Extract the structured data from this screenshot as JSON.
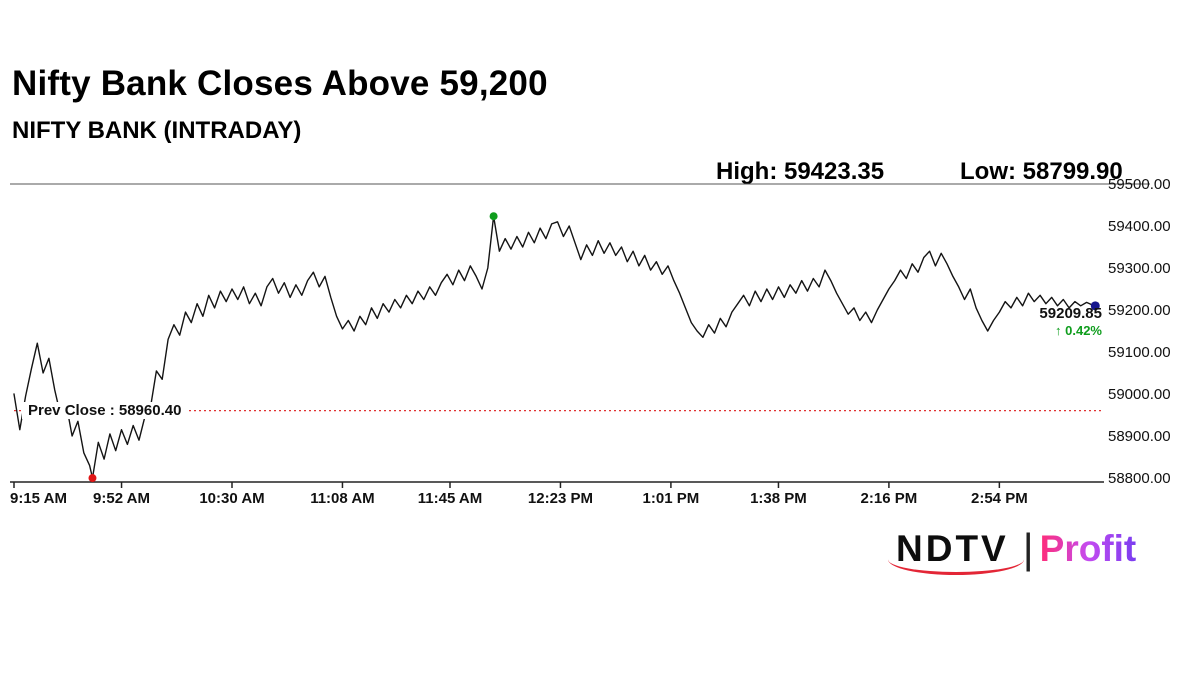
{
  "header": {
    "title": "Nifty Bank Closes Above 59,200",
    "subtitle": "NIFTY BANK (INTRADAY)",
    "high_label": "High: 59423.35",
    "low_label": "Low: 58799.90"
  },
  "chart_data": {
    "type": "line",
    "title": "NIFTY BANK (INTRADAY)",
    "x_unit": "minutes since 9:15 AM",
    "xlim": [
      0,
      375
    ],
    "ylim": [
      58800,
      59500
    ],
    "x_tick_labels": [
      "9:15 AM",
      "9:52 AM",
      "10:30 AM",
      "11:08 AM",
      "11:45 AM",
      "12:23 PM",
      "1:01 PM",
      "1:38 PM",
      "2:16 PM",
      "2:54 PM"
    ],
    "x_tick_minutes": [
      0,
      37,
      75,
      113,
      150,
      188,
      226,
      263,
      301,
      339
    ],
    "y_tick_values": [
      58800,
      58900,
      59000,
      59100,
      59200,
      59300,
      59400,
      59500
    ],
    "y_tick_labels": [
      "58800.00",
      "58900.00",
      "59000.00",
      "59100.00",
      "59200.00",
      "59300.00",
      "59400.00",
      "59500.00"
    ],
    "high": 59423.35,
    "low": 58799.9,
    "prev_close": 58960.4,
    "prev_close_label": "Prev Close : 58960.40",
    "last_price": "59209.85",
    "change_pct": "↑ 0.42%",
    "colors": {
      "line": "#141414",
      "prev_close_line": "#e03131",
      "high_dot": "#0f9d1d",
      "low_dot": "#e01616",
      "last_dot": "#14148c",
      "change_up": "#0f9d1d",
      "axis": "#222222"
    },
    "series": [
      {
        "name": "NIFTY BANK",
        "points": [
          [
            0,
            59000
          ],
          [
            2,
            58915
          ],
          [
            4,
            58995
          ],
          [
            6,
            59060
          ],
          [
            8,
            59121
          ],
          [
            10,
            59050
          ],
          [
            12,
            59085
          ],
          [
            14,
            59010
          ],
          [
            16,
            58950
          ],
          [
            18,
            58975
          ],
          [
            20,
            58900
          ],
          [
            22,
            58935
          ],
          [
            24,
            58860
          ],
          [
            26,
            58830
          ],
          [
            27,
            58799.9
          ],
          [
            29,
            58885
          ],
          [
            31,
            58845
          ],
          [
            33,
            58905
          ],
          [
            35,
            58865
          ],
          [
            37,
            58915
          ],
          [
            39,
            58880
          ],
          [
            41,
            58925
          ],
          [
            43,
            58890
          ],
          [
            45,
            58945
          ],
          [
            47,
            58970
          ],
          [
            49,
            59055
          ],
          [
            51,
            59035
          ],
          [
            53,
            59130
          ],
          [
            55,
            59165
          ],
          [
            57,
            59140
          ],
          [
            59,
            59195
          ],
          [
            61,
            59170
          ],
          [
            63,
            59215
          ],
          [
            65,
            59185
          ],
          [
            67,
            59235
          ],
          [
            69,
            59205
          ],
          [
            71,
            59245
          ],
          [
            73,
            59220
          ],
          [
            75,
            59250
          ],
          [
            77,
            59225
          ],
          [
            79,
            59255
          ],
          [
            81,
            59215
          ],
          [
            83,
            59240
          ],
          [
            85,
            59210
          ],
          [
            87,
            59255
          ],
          [
            89,
            59275
          ],
          [
            91,
            59240
          ],
          [
            93,
            59265
          ],
          [
            95,
            59230
          ],
          [
            97,
            59260
          ],
          [
            99,
            59235
          ],
          [
            101,
            59270
          ],
          [
            103,
            59290
          ],
          [
            105,
            59255
          ],
          [
            107,
            59280
          ],
          [
            109,
            59230
          ],
          [
            111,
            59185
          ],
          [
            113,
            59155
          ],
          [
            115,
            59175
          ],
          [
            117,
            59150
          ],
          [
            119,
            59185
          ],
          [
            121,
            59165
          ],
          [
            123,
            59205
          ],
          [
            125,
            59180
          ],
          [
            127,
            59215
          ],
          [
            129,
            59195
          ],
          [
            131,
            59225
          ],
          [
            133,
            59205
          ],
          [
            135,
            59235
          ],
          [
            137,
            59215
          ],
          [
            139,
            59245
          ],
          [
            141,
            59225
          ],
          [
            143,
            59255
          ],
          [
            145,
            59235
          ],
          [
            147,
            59265
          ],
          [
            149,
            59285
          ],
          [
            151,
            59260
          ],
          [
            153,
            59295
          ],
          [
            155,
            59270
          ],
          [
            157,
            59305
          ],
          [
            159,
            59280
          ],
          [
            161,
            59250
          ],
          [
            163,
            59300
          ],
          [
            165,
            59423.35
          ],
          [
            167,
            59340
          ],
          [
            169,
            59370
          ],
          [
            171,
            59345
          ],
          [
            173,
            59375
          ],
          [
            175,
            59350
          ],
          [
            177,
            59385
          ],
          [
            179,
            59360
          ],
          [
            181,
            59395
          ],
          [
            183,
            59370
          ],
          [
            185,
            59405
          ],
          [
            187,
            59410
          ],
          [
            189,
            59375
          ],
          [
            191,
            59400
          ],
          [
            193,
            59360
          ],
          [
            195,
            59320
          ],
          [
            197,
            59355
          ],
          [
            199,
            59330
          ],
          [
            201,
            59365
          ],
          [
            203,
            59335
          ],
          [
            205,
            59360
          ],
          [
            207,
            59330
          ],
          [
            209,
            59350
          ],
          [
            211,
            59315
          ],
          [
            213,
            59340
          ],
          [
            215,
            59305
          ],
          [
            217,
            59330
          ],
          [
            219,
            59295
          ],
          [
            221,
            59315
          ],
          [
            223,
            59285
          ],
          [
            225,
            59305
          ],
          [
            227,
            59270
          ],
          [
            229,
            59240
          ],
          [
            231,
            59205
          ],
          [
            233,
            59170
          ],
          [
            235,
            59150
          ],
          [
            237,
            59135
          ],
          [
            239,
            59165
          ],
          [
            241,
            59145
          ],
          [
            243,
            59180
          ],
          [
            245,
            59160
          ],
          [
            247,
            59195
          ],
          [
            249,
            59215
          ],
          [
            251,
            59235
          ],
          [
            253,
            59210
          ],
          [
            255,
            59245
          ],
          [
            257,
            59220
          ],
          [
            259,
            59250
          ],
          [
            261,
            59225
          ],
          [
            263,
            59255
          ],
          [
            265,
            59230
          ],
          [
            267,
            59260
          ],
          [
            269,
            59240
          ],
          [
            271,
            59270
          ],
          [
            273,
            59245
          ],
          [
            275,
            59275
          ],
          [
            277,
            59255
          ],
          [
            279,
            59295
          ],
          [
            281,
            59270
          ],
          [
            283,
            59240
          ],
          [
            285,
            59215
          ],
          [
            287,
            59190
          ],
          [
            289,
            59205
          ],
          [
            291,
            59175
          ],
          [
            293,
            59195
          ],
          [
            295,
            59170
          ],
          [
            297,
            59200
          ],
          [
            299,
            59225
          ],
          [
            301,
            59250
          ],
          [
            303,
            59270
          ],
          [
            305,
            59295
          ],
          [
            307,
            59275
          ],
          [
            309,
            59310
          ],
          [
            311,
            59290
          ],
          [
            313,
            59325
          ],
          [
            315,
            59340
          ],
          [
            317,
            59305
          ],
          [
            319,
            59335
          ],
          [
            321,
            59310
          ],
          [
            323,
            59280
          ],
          [
            325,
            59255
          ],
          [
            327,
            59225
          ],
          [
            329,
            59250
          ],
          [
            331,
            59205
          ],
          [
            333,
            59175
          ],
          [
            335,
            59150
          ],
          [
            337,
            59175
          ],
          [
            339,
            59195
          ],
          [
            341,
            59220
          ],
          [
            343,
            59205
          ],
          [
            345,
            59230
          ],
          [
            347,
            59210
          ],
          [
            349,
            59240
          ],
          [
            351,
            59220
          ],
          [
            353,
            59235
          ],
          [
            355,
            59215
          ],
          [
            357,
            59230
          ],
          [
            359,
            59210
          ],
          [
            361,
            59225
          ],
          [
            363,
            59205
          ],
          [
            365,
            59220
          ],
          [
            367,
            59210
          ],
          [
            369,
            59218
          ],
          [
            371,
            59212
          ],
          [
            372,
            59209.85
          ]
        ]
      }
    ]
  },
  "footer": {
    "brand_ndtv": "NDTV",
    "brand_separator": "|",
    "brand_profit": "Profit"
  }
}
